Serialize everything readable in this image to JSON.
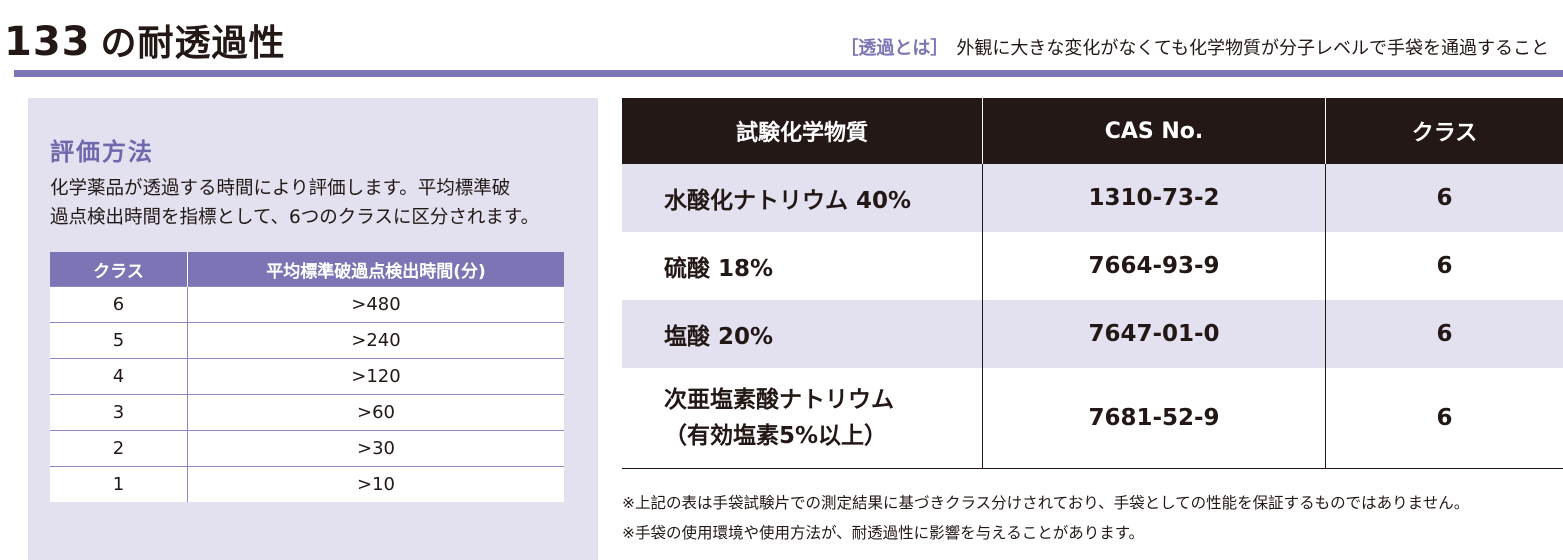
{
  "header": {
    "number": "133",
    "title": "の耐透過性",
    "definition_label": "［透過とは］",
    "definition_text": "外観に大きな変化がなくても化学物質が分子レベルで手袋を通過すること"
  },
  "method": {
    "heading": "評価方法",
    "description_line1": "化学薬品が透過する時間により評価します。平均標準破",
    "description_line2": "過点検出時間を指標として、6つのクラスに区分されます。"
  },
  "class_table": {
    "headers": [
      "クラス",
      "平均標準破過点検出時間(分)"
    ],
    "rows": [
      {
        "class": "6",
        "time": ">480"
      },
      {
        "class": "5",
        "time": ">240"
      },
      {
        "class": "4",
        "time": ">120"
      },
      {
        "class": "3",
        "time": ">60"
      },
      {
        "class": "2",
        "time": ">30"
      },
      {
        "class": "1",
        "time": ">10"
      }
    ]
  },
  "chem_table": {
    "headers": [
      "試験化学物質",
      "CAS No.",
      "クラス"
    ],
    "rows": [
      {
        "chemical": "水酸化ナトリウム 40%",
        "chemical_line2": "",
        "cas": "1310-73-2",
        "class": "6"
      },
      {
        "chemical": "硫酸 18%",
        "chemical_line2": "",
        "cas": "7664-93-9",
        "class": "6"
      },
      {
        "chemical": "塩酸 20%",
        "chemical_line2": "",
        "cas": "7647-01-0",
        "class": "6"
      },
      {
        "chemical": "次亜塩素酸ナトリウム",
        "chemical_line2": "（有効塩素5%以上）",
        "cas": "7681-52-9",
        "class": "6"
      }
    ]
  },
  "notes": [
    "※上記の表は手袋試験片での測定結果に基づきクラス分けされており、手袋としての性能を保証するものではありません。",
    "※手袋の使用環境や使用方法が、耐透過性に影響を与えることがあります。"
  ],
  "colors": {
    "accent": "#7b75b5",
    "panel_bg": "#e3e1f0",
    "dark_header": "#231815"
  }
}
